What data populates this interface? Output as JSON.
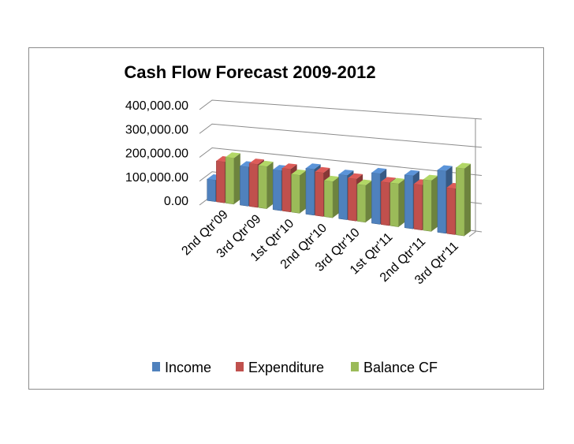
{
  "colors": {
    "income": "#4f81bd",
    "expenditure": "#c0504d",
    "balance": "#9bbb59"
  },
  "chart_data": {
    "type": "bar",
    "title": "Cash Flow Forecast 2009-2012",
    "categories": [
      "2nd Qtr'09",
      "3rd Qtr'09",
      "1st Qtr'10",
      "2nd Qtr'10",
      "3rd Qtr'10",
      "1st Qtr'11",
      "2nd Qtr'11",
      "3rd Qtr'11"
    ],
    "series": [
      {
        "name": "Income",
        "values": [
          90000,
          160000,
          160000,
          180000,
          170000,
          190000,
          195000,
          225000
        ]
      },
      {
        "name": "Expenditure",
        "values": [
          170000,
          175000,
          170000,
          170000,
          160000,
          160000,
          165000,
          165000
        ]
      },
      {
        "name": "Balance CF",
        "values": [
          190000,
          170000,
          150000,
          140000,
          140000,
          160000,
          185000,
          240000
        ]
      }
    ],
    "yticks": [
      "0.00",
      "100,000.00",
      "200,000.00",
      "300,000.00",
      "400,000.00"
    ],
    "ylim": [
      0,
      400000
    ],
    "grid": true,
    "legend_position": "bottom",
    "legend": [
      "Income",
      "Expenditure",
      "Balance CF"
    ]
  }
}
